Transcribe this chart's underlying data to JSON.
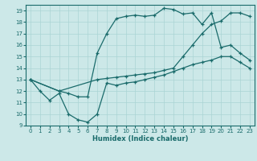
{
  "xlabel": "Humidex (Indice chaleur)",
  "xlim": [
    -0.5,
    23.5
  ],
  "ylim": [
    9,
    19.5
  ],
  "yticks": [
    9,
    10,
    11,
    12,
    13,
    14,
    15,
    16,
    17,
    18,
    19
  ],
  "xticks": [
    0,
    1,
    2,
    3,
    4,
    5,
    6,
    7,
    8,
    9,
    10,
    11,
    12,
    13,
    14,
    15,
    16,
    17,
    18,
    19,
    20,
    21,
    22,
    23
  ],
  "bg_color": "#cce8e8",
  "line_color": "#1a6b6b",
  "grid_color": "#aad4d4",
  "curve1_x": [
    0,
    1,
    2,
    3,
    4,
    5,
    6,
    7,
    8,
    9,
    10,
    11,
    12,
    13,
    14,
    15,
    16,
    17,
    18,
    19,
    20,
    21,
    22,
    23
  ],
  "curve1_y": [
    13.0,
    12.0,
    11.2,
    11.8,
    10.0,
    9.5,
    9.3,
    10.0,
    12.7,
    12.5,
    12.7,
    12.8,
    13.0,
    13.2,
    13.4,
    13.7,
    14.0,
    14.3,
    14.5,
    14.7,
    15.0,
    15.0,
    14.5,
    14.0
  ],
  "curve2_x": [
    0,
    3,
    4,
    5,
    6,
    7,
    8,
    9,
    10,
    11,
    12,
    13,
    14,
    15,
    16,
    17,
    18,
    19,
    20,
    21,
    22,
    23
  ],
  "curve2_y": [
    13.0,
    12.0,
    11.8,
    11.5,
    11.5,
    15.3,
    17.0,
    18.3,
    18.5,
    18.6,
    18.5,
    18.6,
    19.2,
    19.1,
    18.7,
    18.8,
    17.8,
    18.8,
    15.8,
    16.0,
    15.3,
    14.7
  ],
  "curve3_x": [
    0,
    3,
    7,
    8,
    9,
    10,
    11,
    12,
    13,
    14,
    15,
    16,
    17,
    18,
    19,
    20,
    21,
    22,
    23
  ],
  "curve3_y": [
    13.0,
    12.0,
    13.0,
    13.1,
    13.2,
    13.3,
    13.4,
    13.5,
    13.6,
    13.8,
    14.0,
    15.0,
    16.0,
    17.0,
    17.8,
    18.1,
    18.8,
    18.8,
    18.5
  ]
}
